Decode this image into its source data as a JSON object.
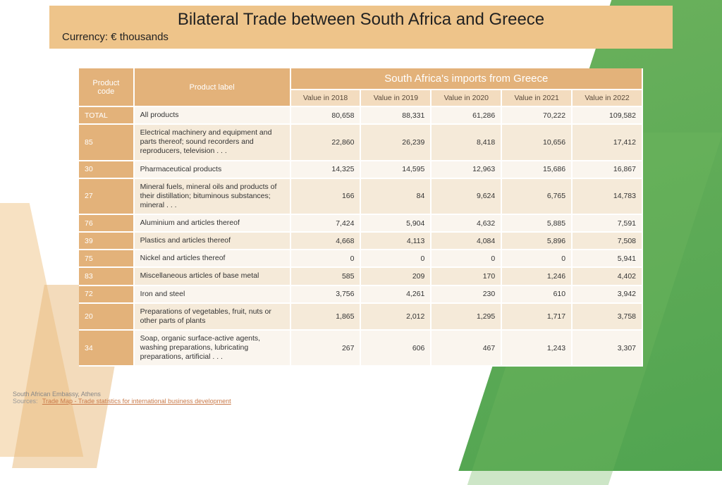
{
  "colors": {
    "header_bg": "#eec48a",
    "th_bg": "#e3b27a",
    "sub_bg": "#f3dcbf",
    "row_even": "#faf5ee",
    "row_odd": "#f5ead9"
  },
  "header": {
    "title": "Bilateral Trade between South Africa and Greece",
    "subtitle": "Currency: € thousands"
  },
  "table": {
    "span_title": "South Africa's imports from Greece",
    "col_code": "Product code",
    "col_label": "Product label",
    "year_cols": [
      "Value in 2018",
      "Value in 2019",
      "Value in 2020",
      "Value in 2021",
      "Value in 2022"
    ],
    "rows": [
      {
        "code": "TOTAL",
        "label": "All products",
        "vals": [
          "80,658",
          "88,331",
          "61,286",
          "70,222",
          "109,582"
        ]
      },
      {
        "code": "85",
        "label": "Electrical machinery and equipment and parts thereof; sound recorders and reproducers, television . . .",
        "vals": [
          "22,860",
          "26,239",
          "8,418",
          "10,656",
          "17,412"
        ]
      },
      {
        "code": "30",
        "label": "Pharmaceutical products",
        "vals": [
          "14,325",
          "14,595",
          "12,963",
          "15,686",
          "16,867"
        ]
      },
      {
        "code": "27",
        "label": "Mineral fuels, mineral oils and products of their distillation; bituminous substances; mineral . . .",
        "vals": [
          "166",
          "84",
          "9,624",
          "6,765",
          "14,783"
        ]
      },
      {
        "code": "76",
        "label": "Aluminium and articles thereof",
        "vals": [
          "7,424",
          "5,904",
          "4,632",
          "5,885",
          "7,591"
        ]
      },
      {
        "code": "39",
        "label": "Plastics and articles thereof",
        "vals": [
          "4,668",
          "4,113",
          "4,084",
          "5,896",
          "7,508"
        ]
      },
      {
        "code": "75",
        "label": "Nickel and articles thereof",
        "vals": [
          "0",
          "0",
          "0",
          "0",
          "5,941"
        ]
      },
      {
        "code": "83",
        "label": "Miscellaneous articles of base metal",
        "vals": [
          "585",
          "209",
          "170",
          "1,246",
          "4,402"
        ]
      },
      {
        "code": "72",
        "label": "Iron and steel",
        "vals": [
          "3,756",
          "4,261",
          "230",
          "610",
          "3,942"
        ]
      },
      {
        "code": "20",
        "label": "Preparations of vegetables, fruit, nuts or other parts of plants",
        "vals": [
          "1,865",
          "2,012",
          "1,295",
          "1,717",
          "3,758"
        ]
      },
      {
        "code": "34",
        "label": "Soap, organic surface-active agents, washing preparations, lubricating preparations, artificial . . .",
        "vals": [
          "267",
          "606",
          "467",
          "1,243",
          "3,307"
        ]
      }
    ]
  },
  "footer": {
    "org": "South African Embassy, Athens",
    "src_label": "Sources:",
    "link_text": "Trade Map - Trade statistics for international business development"
  }
}
